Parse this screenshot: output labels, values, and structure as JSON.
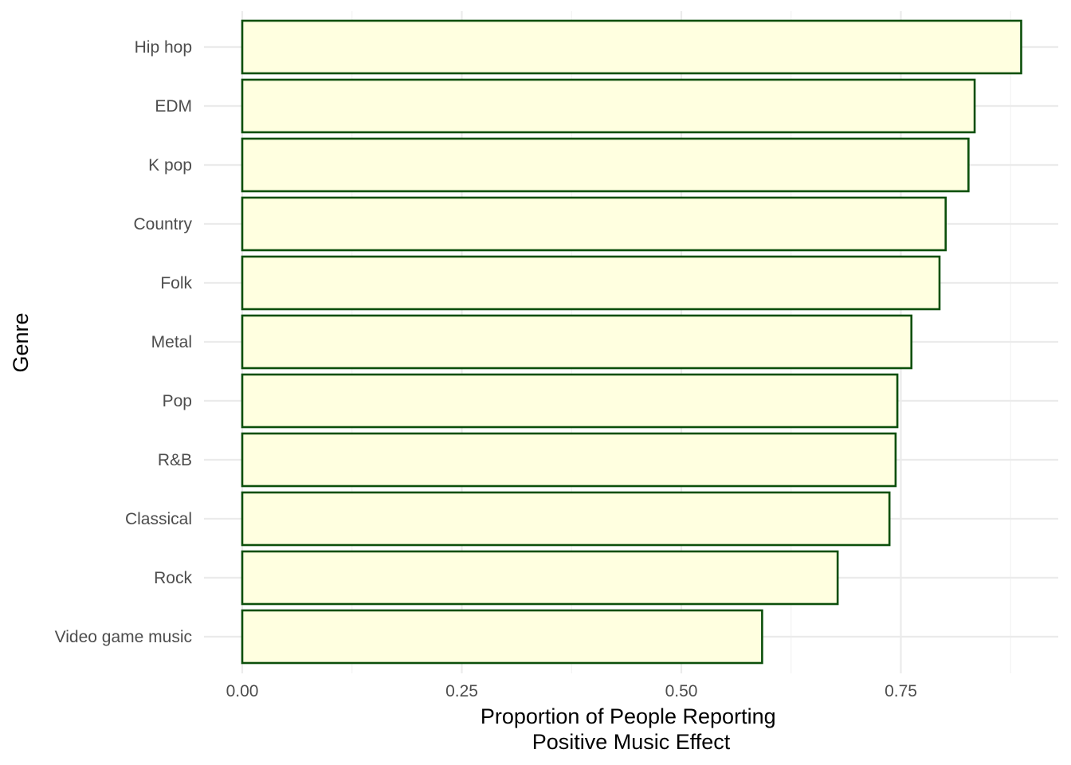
{
  "chart_data": {
    "type": "bar",
    "orientation": "horizontal",
    "categories": [
      "Hip hop",
      "EDM",
      "K pop",
      "Country",
      "Folk",
      "Metal",
      "Pop",
      "R&B",
      "Classical",
      "Rock",
      "Video game music"
    ],
    "values": [
      0.887,
      0.834,
      0.827,
      0.801,
      0.794,
      0.762,
      0.746,
      0.744,
      0.737,
      0.678,
      0.592
    ],
    "xlabel": "Proportion of People Reporting\nPositive Music Effect",
    "xlabel_lines": [
      "Proportion of People Reporting",
      "Positive Music Effect"
    ],
    "ylabel": "Genre",
    "xlim": [
      0,
      0.93
    ],
    "x_ticks": [
      0,
      0.25,
      0.5,
      0.75
    ],
    "x_tick_labels": [
      "0.00",
      "0.25",
      "0.50",
      "0.75"
    ],
    "grid": true,
    "legend": "none",
    "colors": {
      "bar_fill": "#ffffe0",
      "bar_stroke": "#0b4f0b",
      "grid": "#ebebeb",
      "background": "#ffffff"
    }
  }
}
